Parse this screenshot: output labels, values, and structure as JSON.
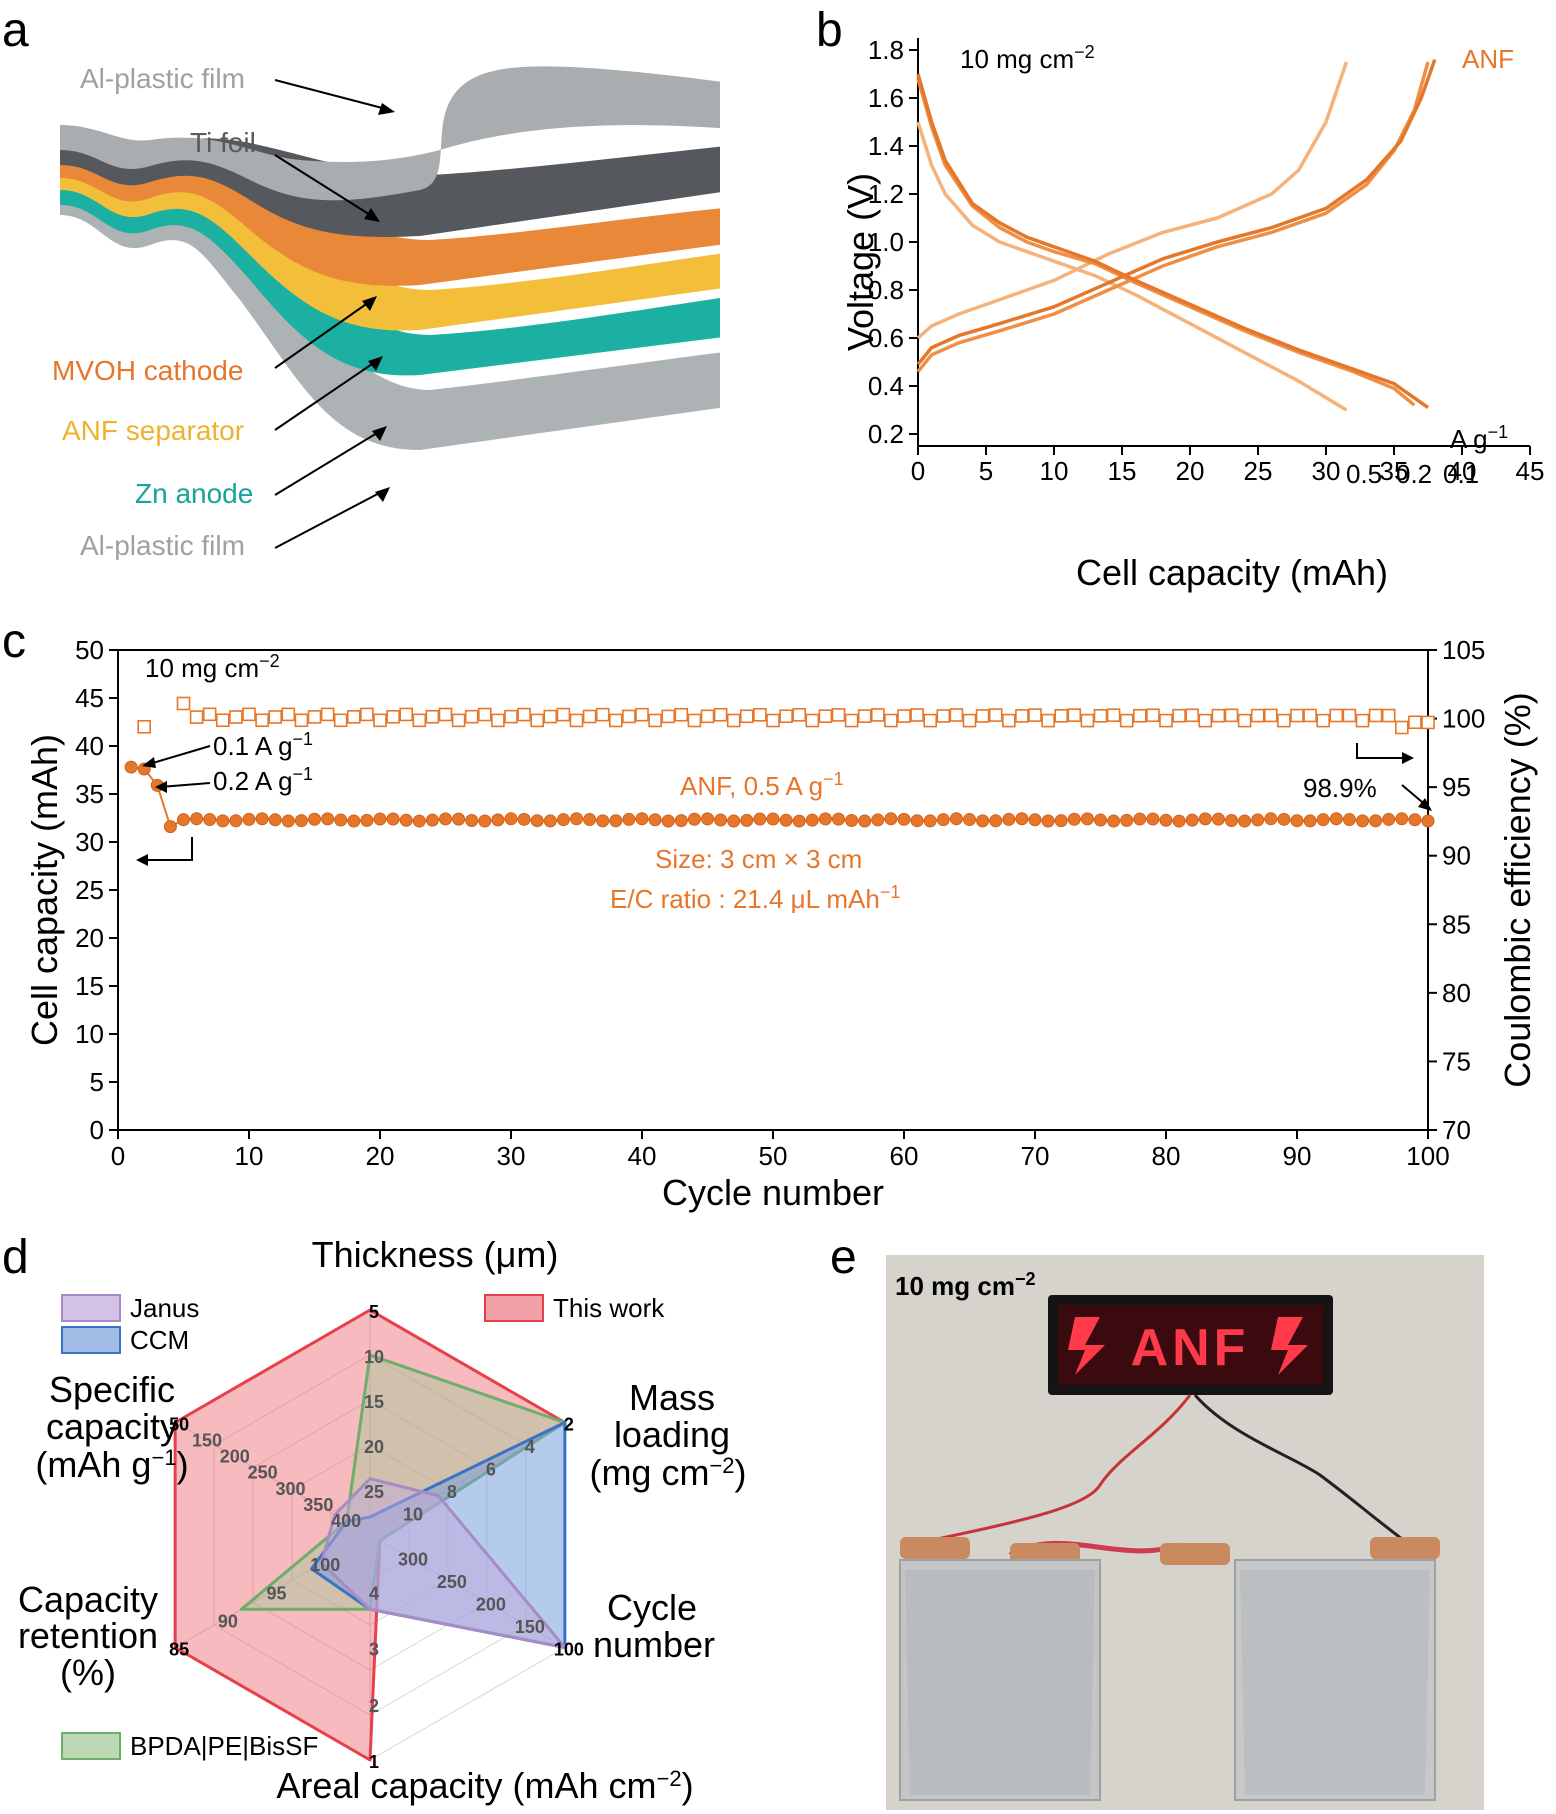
{
  "panels": {
    "a": {
      "letter": "a",
      "labels": [
        "Al-plastic film",
        "Ti foil",
        "MVOH cathode",
        "ANF separator",
        "Zn anode",
        "Al-plastic film"
      ],
      "label_colors": [
        "#a0a0a0",
        "#5a5a5a",
        "#e5762a",
        "#f0b22e",
        "#17a39a",
        "#a0a0a0"
      ]
    },
    "b": {
      "letter": "b",
      "ann_loading": "10 mg cm",
      "ann_loading_exp": "−2",
      "ann_series": "ANF",
      "rate_unit": "A g",
      "rate_unit_exp": "−1",
      "rate_labels": [
        "0.5",
        "0.2",
        "0.1"
      ]
    },
    "c": {
      "letter": "c",
      "ann_loading": "10 mg cm",
      "ann_loading_exp": "−2",
      "ann_rate1": "0.1 A g",
      "ann_rate2": "0.2 A g",
      "ann_exp": "−1",
      "ann_main": "ANF, 0.5 A g",
      "ann_size": "Size: 3 cm × 3 cm",
      "ann_ec": "E/C ratio : 21.4 μL mAh",
      "ann_ce": "98.9%"
    },
    "d": {
      "letter": "d",
      "legend": [
        "Janus",
        "CCM",
        "This work",
        "BPDA|PE|BisSF"
      ],
      "axis_titles": {
        "thickness": "Thickness (μm)",
        "mass1": "Mass",
        "mass2": "loading",
        "mass3": "(mg cm",
        "cycle1": "Cycle",
        "cycle2": "number",
        "areal": "Areal capacity  (mAh cm",
        "ret1": "Capacity",
        "ret2": "retention",
        "ret3": "(%)",
        "spec1": "Specific",
        "spec2": "capacity",
        "spec3": "(mAh g"
      }
    },
    "e": {
      "letter": "e",
      "ann_loading": "10 mg cm",
      "ann_loading_exp": "−2",
      "led_text": "ANF"
    }
  },
  "chart_data": [
    {
      "panel": "b",
      "type": "line",
      "xlabel": "Cell capacity (mAh)",
      "ylabel": "Voltage (V)",
      "xlim": [
        0,
        45
      ],
      "ylim": [
        0.15,
        1.85
      ],
      "xticks": [
        0,
        5,
        10,
        15,
        20,
        25,
        30,
        35,
        40,
        45
      ],
      "yticks": [
        0.2,
        0.4,
        0.6,
        0.8,
        1.0,
        1.2,
        1.4,
        1.6,
        1.8
      ],
      "series": [
        {
          "name": "0.5",
          "color": "#f5b27a",
          "discharge": {
            "x": [
              0,
              1,
              2,
              4,
              6,
              8,
              10,
              13,
              16,
              20,
              24,
              28,
              31.5
            ],
            "y": [
              1.5,
              1.32,
              1.2,
              1.07,
              1.0,
              0.96,
              0.92,
              0.86,
              0.78,
              0.66,
              0.54,
              0.42,
              0.3
            ]
          },
          "charge": {
            "x": [
              0,
              1,
              3,
              6,
              10,
              14,
              18,
              22,
              26,
              28,
              30,
              31.5
            ],
            "y": [
              0.6,
              0.65,
              0.7,
              0.76,
              0.84,
              0.95,
              1.04,
              1.1,
              1.2,
              1.3,
              1.5,
              1.75
            ]
          }
        },
        {
          "name": "0.2",
          "color": "#ef8f45",
          "discharge": {
            "x": [
              0,
              1,
              2,
              4,
              6,
              8,
              10,
              13,
              16,
              20,
              24,
              28,
              32,
              35,
              36.5
            ],
            "y": [
              1.68,
              1.48,
              1.32,
              1.15,
              1.06,
              1.0,
              0.96,
              0.91,
              0.83,
              0.73,
              0.63,
              0.54,
              0.46,
              0.39,
              0.32
            ]
          },
          "charge": {
            "x": [
              0,
              1,
              3,
              6,
              10,
              14,
              18,
              22,
              26,
              30,
              33,
              35,
              36.5,
              37.5
            ],
            "y": [
              0.46,
              0.53,
              0.58,
              0.63,
              0.7,
              0.8,
              0.9,
              0.98,
              1.04,
              1.12,
              1.24,
              1.38,
              1.55,
              1.75
            ]
          }
        },
        {
          "name": "0.1",
          "color": "#e5762a",
          "discharge": {
            "x": [
              0,
              1,
              2,
              4,
              6,
              8,
              10,
              13,
              16,
              20,
              24,
              28,
              32,
              35,
              37.5
            ],
            "y": [
              1.7,
              1.5,
              1.34,
              1.16,
              1.08,
              1.02,
              0.98,
              0.92,
              0.84,
              0.74,
              0.64,
              0.55,
              0.47,
              0.41,
              0.31
            ]
          },
          "charge": {
            "x": [
              0,
              1,
              3,
              6,
              10,
              14,
              18,
              22,
              26,
              30,
              33,
              35.5,
              37,
              38
            ],
            "y": [
              0.49,
              0.56,
              0.61,
              0.66,
              0.73,
              0.83,
              0.93,
              1.0,
              1.06,
              1.14,
              1.26,
              1.42,
              1.6,
              1.76
            ]
          }
        }
      ]
    },
    {
      "panel": "c",
      "type": "scatter",
      "xlabel": "Cycle number",
      "ylabel": "Cell capacity (mAh)",
      "y2label": "Coulombic efficiency (%)",
      "xlim": [
        0,
        100
      ],
      "ylim": [
        0,
        50
      ],
      "y2lim": [
        70,
        105
      ],
      "xticks": [
        0,
        10,
        20,
        30,
        40,
        50,
        60,
        70,
        80,
        90,
        100
      ],
      "yticks": [
        0,
        5,
        10,
        15,
        20,
        25,
        30,
        35,
        40,
        45,
        50
      ],
      "y2ticks": [
        70,
        75,
        80,
        85,
        90,
        95,
        100,
        105
      ],
      "color": "#e5762a",
      "capacity_initial": [
        [
          1,
          37.8
        ],
        [
          2,
          37.6
        ],
        [
          3,
          35.9
        ],
        [
          4,
          31.6
        ]
      ],
      "capacity_plateau": 32.3,
      "ce_initial": [
        [
          2,
          99.4
        ],
        [
          5,
          101.1
        ]
      ],
      "ce_plateau": 100.1
    },
    {
      "panel": "d",
      "type": "radar",
      "axes": [
        {
          "name": "Thickness (μm)",
          "ticks": [
            "5",
            "10",
            "15",
            "20",
            "25"
          ]
        },
        {
          "name": "Mass loading (mg cm−2)",
          "ticks": [
            "2",
            "4",
            "6",
            "8",
            "10"
          ]
        },
        {
          "name": "Cycle number",
          "ticks": [
            "100",
            "150",
            "200",
            "250",
            "300"
          ]
        },
        {
          "name": "Areal capacity (mAh cm−2)",
          "ticks": [
            "1",
            "2",
            "3",
            "4"
          ]
        },
        {
          "name": "Capacity retention (%)",
          "ticks": [
            "85",
            "90",
            "95",
            "100"
          ]
        },
        {
          "name": "Specific capacity (mAh g−1)",
          "ticks": [
            "50",
            "150",
            "200",
            "250",
            "300",
            "350",
            "400"
          ]
        }
      ],
      "series": [
        {
          "name": "This work",
          "color": "#e8404a",
          "fill": "rgba(236,90,100,0.42)",
          "r": [
            1.0,
            1.0,
            0.05,
            1.0,
            1.0,
            1.0
          ]
        },
        {
          "name": "BPDA|PE|BisSF",
          "color": "#6fae6a",
          "fill": "rgba(160,200,150,0.45)",
          "r": [
            0.8,
            1.0,
            0.05,
            0.33,
            0.66,
            0.12
          ]
        },
        {
          "name": "CCM",
          "color": "#3a73c6",
          "fill": "rgba(120,160,220,0.55)",
          "r": [
            0.08,
            1.0,
            1.0,
            0.33,
            0.3,
            0.12
          ]
        },
        {
          "name": "Janus",
          "color": "#a78bc5",
          "fill": "rgba(195,170,220,0.5)",
          "r": [
            0.25,
            0.35,
            1.0,
            0.33,
            0.25,
            0.18
          ]
        }
      ]
    }
  ]
}
